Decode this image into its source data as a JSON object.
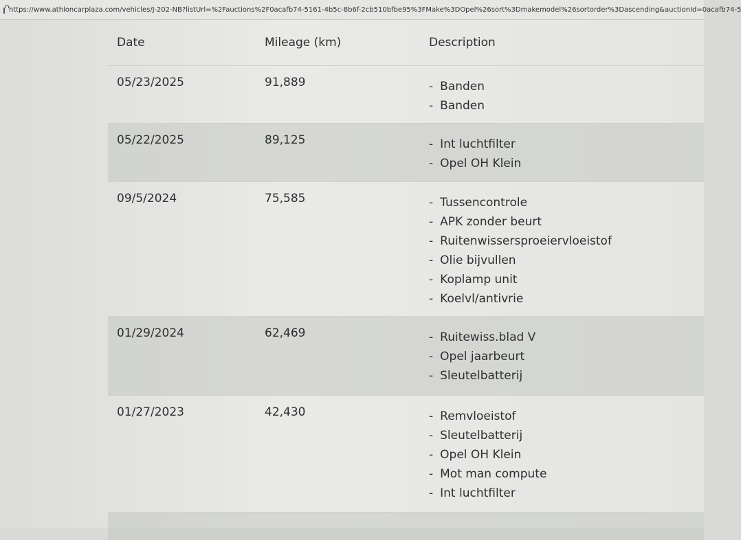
{
  "browser": {
    "url": "https://www.athloncarplaza.com/vehicles/J-202-NB?listUrl=%2Fauctions%2F0acafb74-5161-4b5c-8b6f-2cb510bfbe95%3FMake%3DOpel%26sort%3Dmakemodel%26sortorder%3Dascending&auctionId=0acafb74-5"
  },
  "table": {
    "headers": {
      "date": "Date",
      "mileage": "Mileage (km)",
      "description": "Description"
    },
    "rows": [
      {
        "date": "05/23/2025",
        "mileage": "91,889",
        "items": [
          "Banden",
          "Banden"
        ]
      },
      {
        "date": "05/22/2025",
        "mileage": "89,125",
        "items": [
          "Int luchtfilter",
          "Opel OH Klein"
        ]
      },
      {
        "date": "09/5/2024",
        "mileage": "75,585",
        "items": [
          "Tussencontrole",
          "APK zonder beurt",
          "Ruitenwissersproeiervloeistof",
          "Olie bijvullen",
          "Koplamp unit",
          "Koelvl/antivrie"
        ]
      },
      {
        "date": "01/29/2024",
        "mileage": "62,469",
        "items": [
          "Ruitewiss.blad V",
          "Opel jaarbeurt",
          "Sleutelbatterij"
        ]
      },
      {
        "date": "01/27/2023",
        "mileage": "42,430",
        "items": [
          "Remvloeistof",
          "Sleutelbatterij",
          "Opel OH Klein",
          "Mot man compute",
          "Int luchtfilter"
        ]
      }
    ]
  }
}
